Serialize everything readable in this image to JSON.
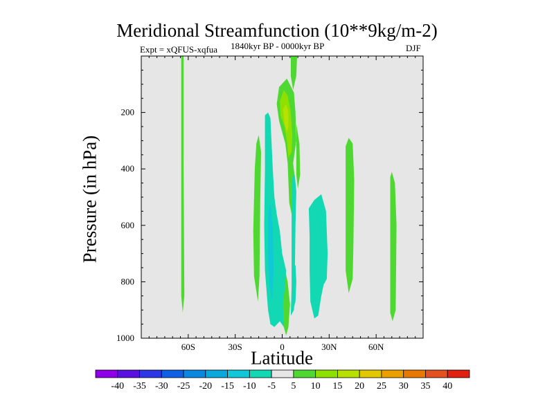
{
  "chart_data": {
    "type": "filled-contour",
    "title": "Meridional Streamfunction (10**9kg/m-2)",
    "subtitle_left": "Expt = xQFUS-xqfua",
    "subtitle_center": "1840kyr BP - 0000kyr BP",
    "subtitle_right": "DJF",
    "xlabel": "Latitude",
    "ylabel": "Pressure (in hPa)",
    "xlim": [
      -90,
      90
    ],
    "ylim": [
      1000,
      0
    ],
    "x_ticks": [
      {
        "value": -60,
        "label": "60S"
      },
      {
        "value": -30,
        "label": "30S"
      },
      {
        "value": 0,
        "label": "0"
      },
      {
        "value": 30,
        "label": "30N"
      },
      {
        "value": 60,
        "label": "60N"
      }
    ],
    "y_ticks": [
      {
        "value": 200,
        "label": "200"
      },
      {
        "value": 400,
        "label": "400"
      },
      {
        "value": 600,
        "label": "600"
      },
      {
        "value": 800,
        "label": "800"
      },
      {
        "value": 1000,
        "label": "1000"
      }
    ],
    "background_color": "#e6e6e6",
    "colorbar": {
      "labels": [
        "-40",
        "-35",
        "-30",
        "-25",
        "-20",
        "-15",
        "-10",
        "-5",
        "5",
        "10",
        "15",
        "20",
        "25",
        "30",
        "35",
        "40"
      ],
      "colors": [
        "#8f00e8",
        "#5a10e0",
        "#2d37e6",
        "#1060e6",
        "#0a87e0",
        "#0aa8dc",
        "#10c8d8",
        "#12d8b4",
        "#e6e6e6",
        "#50d832",
        "#8ee000",
        "#b8e000",
        "#e2c800",
        "#eca000",
        "#e87800",
        "#e45020",
        "#e02010"
      ]
    },
    "regions": [
      {
        "level": 5,
        "points": [
          [
            -64.5,
            0
          ],
          [
            -63.0,
            0
          ],
          [
            -63.0,
            350
          ],
          [
            -62.5,
            850
          ],
          [
            -63.5,
            910
          ],
          [
            -64.5,
            850
          ],
          [
            -64.5,
            350
          ]
        ]
      },
      {
        "level": 5,
        "points": [
          [
            5.5,
            0
          ],
          [
            9.5,
            0
          ],
          [
            9.0,
            70
          ],
          [
            7.0,
            120
          ],
          [
            5.5,
            70
          ]
        ]
      },
      {
        "level": 5,
        "points": [
          [
            -2.0,
            110
          ],
          [
            3.0,
            80
          ],
          [
            7.5,
            130
          ],
          [
            8.5,
            200
          ],
          [
            9.0,
            300
          ],
          [
            7.0,
            380
          ],
          [
            8.5,
            450
          ],
          [
            7.0,
            520
          ],
          [
            6.0,
            560
          ],
          [
            4.5,
            520
          ],
          [
            3.5,
            380
          ],
          [
            2.0,
            310
          ],
          [
            0.5,
            280
          ],
          [
            -2.0,
            230
          ],
          [
            -3.5,
            170
          ]
        ]
      },
      {
        "level": 10,
        "points": [
          [
            -1.5,
            160
          ],
          [
            1.0,
            120
          ],
          [
            3.5,
            140
          ],
          [
            5.5,
            200
          ],
          [
            6.5,
            280
          ],
          [
            6.0,
            340
          ],
          [
            4.0,
            360
          ],
          [
            3.0,
            300
          ],
          [
            1.5,
            250
          ],
          [
            -1.0,
            210
          ]
        ]
      },
      {
        "level": 15,
        "points": [
          [
            0.5,
            190
          ],
          [
            2.5,
            170
          ],
          [
            4.0,
            200
          ],
          [
            4.0,
            250
          ],
          [
            3.0,
            270
          ],
          [
            1.5,
            240
          ]
        ]
      },
      {
        "level": 5,
        "points": [
          [
            9.0,
            240
          ],
          [
            11.0,
            310
          ],
          [
            11.5,
            420
          ],
          [
            10.0,
            470
          ],
          [
            9.0,
            420
          ]
        ]
      },
      {
        "level": 5,
        "points": [
          [
            -16.5,
            310
          ],
          [
            -15.0,
            280
          ],
          [
            -13.5,
            340
          ],
          [
            -14.0,
            520
          ],
          [
            -14.5,
            780
          ],
          [
            -15.5,
            870
          ],
          [
            -18.0,
            780
          ],
          [
            -18.5,
            620
          ],
          [
            -17.5,
            400
          ]
        ]
      },
      {
        "level": 5,
        "points": [
          [
            -1.0,
            830
          ],
          [
            1.5,
            750
          ],
          [
            3.5,
            800
          ],
          [
            5.0,
            880
          ],
          [
            4.0,
            960
          ],
          [
            2.5,
            990
          ],
          [
            0.5,
            950
          ],
          [
            -0.5,
            900
          ]
        ]
      },
      {
        "level": 5,
        "points": [
          [
            40.5,
            320
          ],
          [
            42.5,
            290
          ],
          [
            45.0,
            310
          ],
          [
            46.0,
            440
          ],
          [
            45.5,
            660
          ],
          [
            45.0,
            790
          ],
          [
            42.5,
            840
          ],
          [
            40.5,
            760
          ],
          [
            40.5,
            500
          ]
        ]
      },
      {
        "level": 5,
        "points": [
          [
            69.0,
            430
          ],
          [
            70.0,
            410
          ],
          [
            72.0,
            450
          ],
          [
            73.0,
            600
          ],
          [
            72.5,
            900
          ],
          [
            70.5,
            940
          ],
          [
            69.0,
            910
          ]
        ]
      },
      {
        "level": -5,
        "points": [
          [
            -11.0,
            210
          ],
          [
            -9.0,
            200
          ],
          [
            -7.5,
            220
          ],
          [
            -6.0,
            400
          ],
          [
            -5.0,
            500
          ],
          [
            -3.5,
            560
          ],
          [
            -1.5,
            620
          ],
          [
            0.0,
            700
          ],
          [
            2.5,
            760
          ],
          [
            1.5,
            830
          ],
          [
            0.5,
            880
          ],
          [
            1.0,
            960
          ],
          [
            -1.5,
            940
          ],
          [
            -5.0,
            960
          ],
          [
            -7.5,
            950
          ],
          [
            -9.0,
            900
          ],
          [
            -11.0,
            760
          ],
          [
            -11.5,
            600
          ],
          [
            -11.0,
            400
          ]
        ]
      },
      {
        "level": -5,
        "points": [
          [
            6.5,
            430
          ],
          [
            8.0,
            420
          ],
          [
            9.0,
            480
          ],
          [
            8.5,
            600
          ],
          [
            8.0,
            800
          ],
          [
            7.5,
            900
          ],
          [
            5.5,
            920
          ],
          [
            6.0,
            820
          ],
          [
            6.0,
            700
          ],
          [
            6.0,
            550
          ]
        ]
      },
      {
        "level": -5,
        "points": [
          [
            17.0,
            540
          ],
          [
            20.5,
            510
          ],
          [
            25.0,
            490
          ],
          [
            28.0,
            550
          ],
          [
            29.0,
            700
          ],
          [
            28.5,
            790
          ],
          [
            26.5,
            810
          ],
          [
            25.0,
            850
          ],
          [
            23.0,
            920
          ],
          [
            20.5,
            930
          ],
          [
            18.0,
            870
          ],
          [
            17.5,
            760
          ],
          [
            17.5,
            640
          ]
        ]
      },
      {
        "level": -5,
        "points": [
          [
            7.5,
            750
          ],
          [
            8.5,
            740
          ],
          [
            9.0,
            800
          ],
          [
            8.5,
            870
          ],
          [
            7.5,
            890
          ],
          [
            7.0,
            820
          ]
        ]
      },
      {
        "level": -10,
        "points": [
          [
            -9.0,
            560
          ],
          [
            -7.5,
            520
          ],
          [
            -6.0,
            610
          ],
          [
            -5.5,
            760
          ],
          [
            -6.5,
            860
          ],
          [
            -8.0,
            820
          ],
          [
            -9.0,
            700
          ]
        ]
      }
    ]
  }
}
